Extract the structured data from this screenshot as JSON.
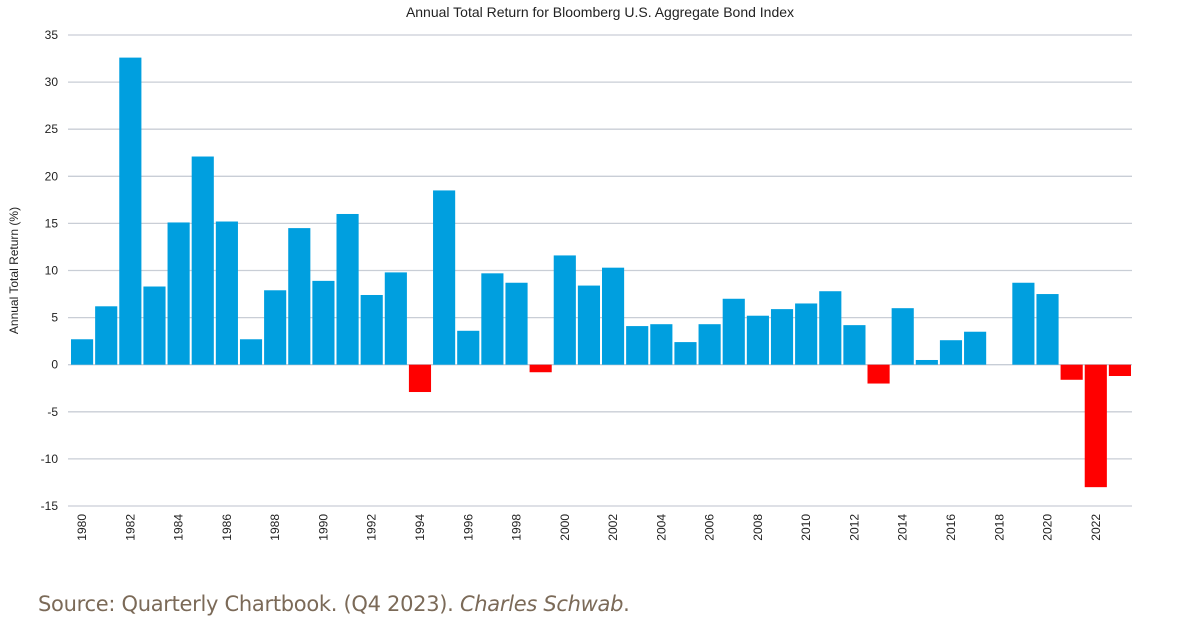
{
  "chart_data": {
    "type": "bar",
    "title": "Annual Total Return for Bloomberg U.S. Aggregate Bond Index",
    "xlabel": "",
    "ylabel": "Annual Total Return (%)",
    "ylim": [
      -15,
      35
    ],
    "yticks": [
      35,
      30,
      25,
      20,
      15,
      10,
      5,
      0,
      -5,
      -10,
      -15
    ],
    "grid": true,
    "legend": "none",
    "colors": {
      "positive": "#009fdf",
      "negative": "#ff0000",
      "grid": "#c9ced6"
    },
    "categories": [
      "1980",
      "1981",
      "1982",
      "1983",
      "1984",
      "1985",
      "1986",
      "1987",
      "1988",
      "1989",
      "1990",
      "1991",
      "1992",
      "1993",
      "1994",
      "1995",
      "1996",
      "1997",
      "1998",
      "1999",
      "2000",
      "2001",
      "2002",
      "2003",
      "2004",
      "2005",
      "2006",
      "2007",
      "2008",
      "2009",
      "2010",
      "2011",
      "2012",
      "2013",
      "2014",
      "2015",
      "2016",
      "2017",
      "2018",
      "2019",
      "2020",
      "2021",
      "2022",
      "2023"
    ],
    "xtick_labels": [
      "1980",
      "1982",
      "1984",
      "1986",
      "1988",
      "1990",
      "1992",
      "1994",
      "1996",
      "1998",
      "2000",
      "2002",
      "2004",
      "2006",
      "2008",
      "2010",
      "2012",
      "2014",
      "2016",
      "2018",
      "2020",
      "2022"
    ],
    "values": [
      2.7,
      6.2,
      32.6,
      8.3,
      15.1,
      22.1,
      15.2,
      2.7,
      7.9,
      14.5,
      8.9,
      16.0,
      7.4,
      9.8,
      -2.9,
      18.5,
      3.6,
      9.7,
      8.7,
      -0.8,
      11.6,
      8.4,
      10.3,
      4.1,
      4.3,
      2.4,
      4.3,
      7.0,
      5.2,
      5.9,
      6.5,
      7.8,
      4.2,
      -2.0,
      6.0,
      0.5,
      2.6,
      3.5,
      0.0,
      8.7,
      7.5,
      -1.6,
      -13.0,
      -1.2
    ]
  },
  "source": {
    "prefix": "Source: Quarterly Chartbook. (Q4 2023). ",
    "publisher": "Charles Schwab",
    "suffix": "."
  }
}
